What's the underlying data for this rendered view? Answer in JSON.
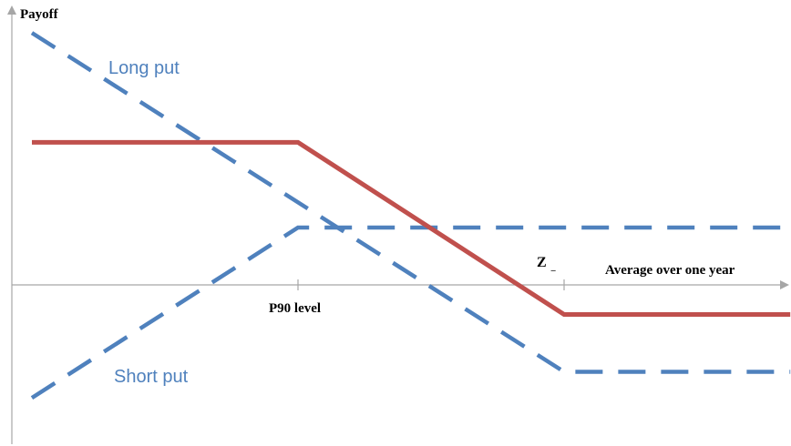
{
  "chart_data": {
    "type": "line",
    "ylabel": "Payoff",
    "xlabel": "Average over one year",
    "x_ticks": [
      {
        "label": "P90 level",
        "x": 1
      },
      {
        "label": "Z",
        "subscript": "–",
        "x": 2
      }
    ],
    "xlim": [
      -0.05,
      2.9
    ],
    "ylim": [
      -1.0,
      1.65
    ],
    "grid": false,
    "series": [
      {
        "name": "Long put",
        "style": "dashed",
        "color": "#4F81BD",
        "points": [
          [
            0,
            1.45
          ],
          [
            2,
            -0.5
          ],
          [
            2.85,
            -0.5
          ]
        ]
      },
      {
        "name": "Short put",
        "style": "dashed",
        "color": "#4F81BD",
        "points": [
          [
            0,
            -0.65
          ],
          [
            1,
            0.33
          ],
          [
            2.85,
            0.33
          ]
        ]
      },
      {
        "name": "",
        "style": "solid",
        "color": "#C0504D",
        "points": [
          [
            0,
            0.82
          ],
          [
            1,
            0.82
          ],
          [
            2,
            -0.17
          ],
          [
            2.85,
            -0.17
          ]
        ]
      }
    ]
  },
  "axis_color": "#A6A6A6"
}
